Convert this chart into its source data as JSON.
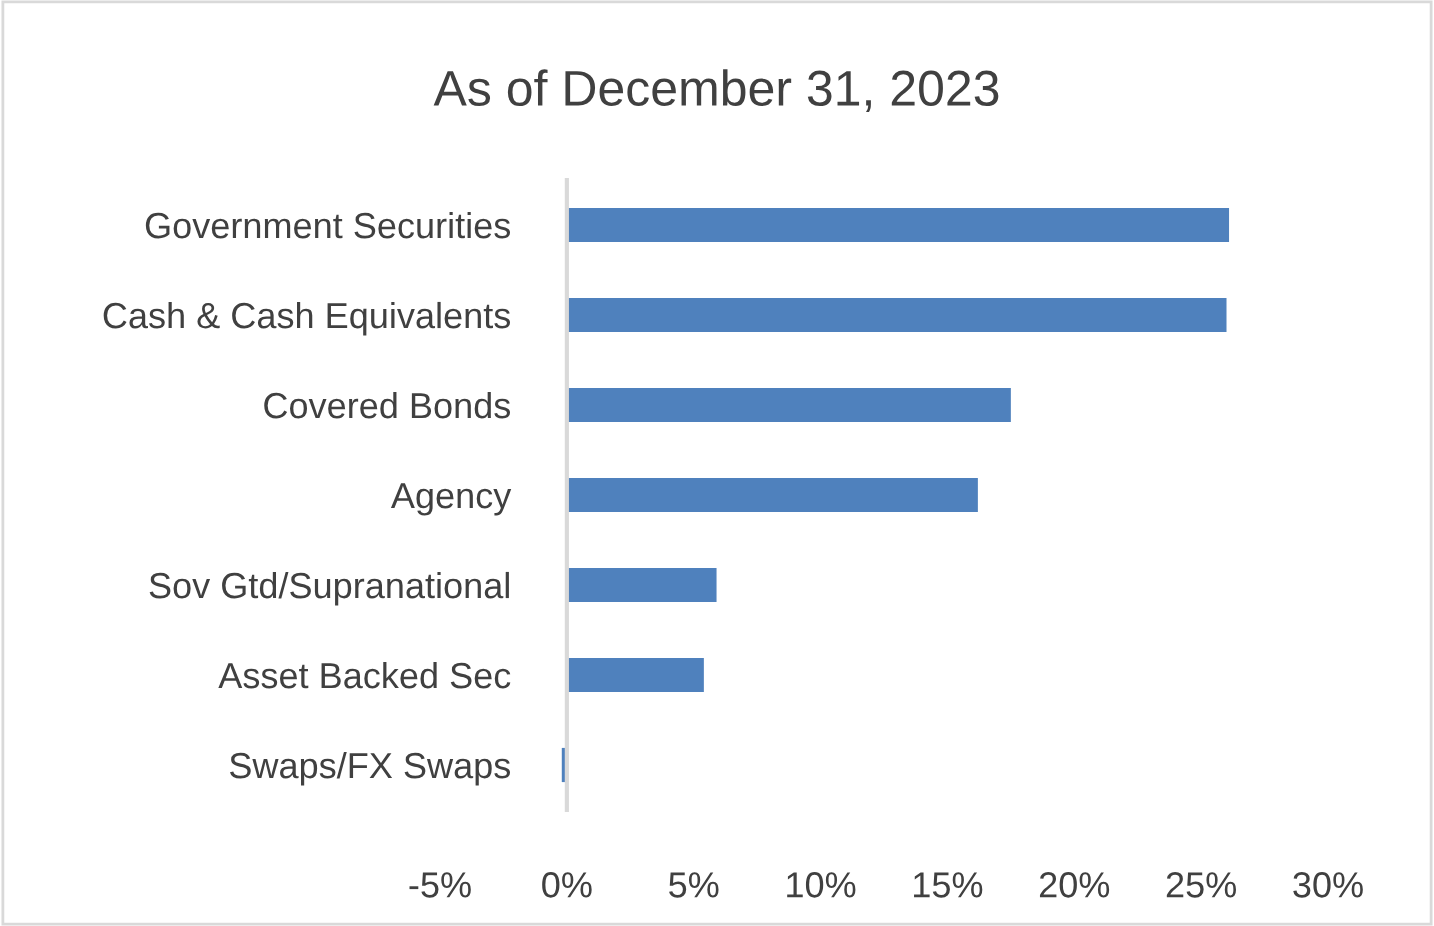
{
  "chart_data": {
    "type": "bar",
    "orientation": "horizontal",
    "title": "As of December 31, 2023",
    "categories": [
      "Government Securities",
      "Cash & Cash Equivalents",
      "Covered Bonds",
      "Agency",
      "Sov Gtd/Supranational",
      "Asset Backed Sec",
      "Swaps/FX Swaps"
    ],
    "values": [
      26.1,
      26.0,
      17.5,
      16.2,
      5.9,
      5.4,
      -0.2
    ],
    "color": "#4f81bd",
    "xlim": [
      -5,
      30
    ],
    "xticks": [
      {
        "value": -5,
        "label": "-5%"
      },
      {
        "value": 0,
        "label": "0%"
      },
      {
        "value": 5,
        "label": "5%"
      },
      {
        "value": 10,
        "label": "10%"
      },
      {
        "value": 15,
        "label": "15%"
      },
      {
        "value": 20,
        "label": "20%"
      },
      {
        "value": 25,
        "label": "25%"
      },
      {
        "value": 30,
        "label": "30%"
      }
    ],
    "grid": false,
    "legend": false
  }
}
